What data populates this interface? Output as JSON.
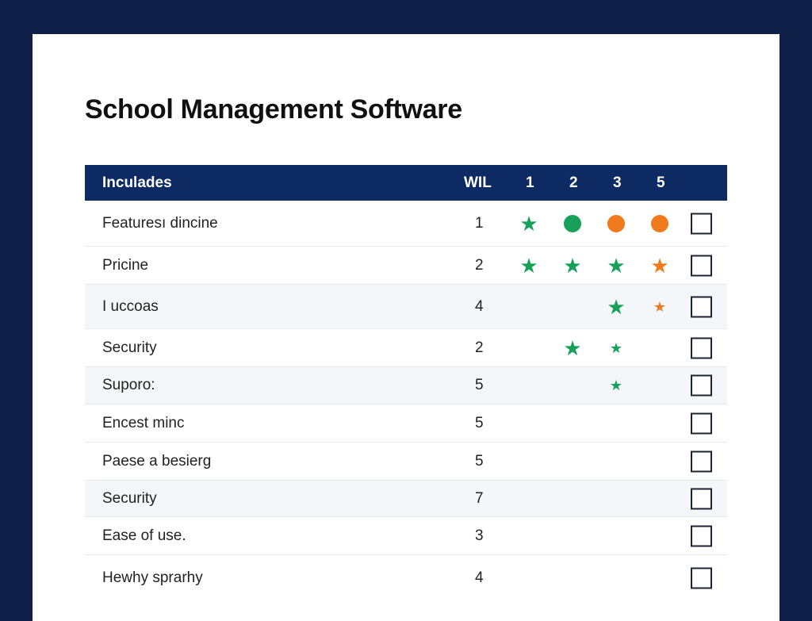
{
  "page": {
    "title": "School Management Software"
  },
  "table": {
    "headers": {
      "label": "Inculades",
      "wil": "WIL",
      "c1": "1",
      "c2": "2",
      "c3": "3",
      "c4": "5"
    },
    "rows": [
      {
        "label": "Featuresı dincine",
        "value": "1"
      },
      {
        "label": "Pricine",
        "value": "2"
      },
      {
        "label": "I uccoas",
        "value": "4"
      },
      {
        "label": "Security",
        "value": "2"
      },
      {
        "label": "Suporo:",
        "value": "5"
      },
      {
        "label": "Encest minc",
        "value": "5"
      },
      {
        "label": "Paese a besierg",
        "value": "5"
      },
      {
        "label": "Security",
        "value": "7"
      },
      {
        "label": "Ease of use.",
        "value": "3"
      },
      {
        "label": "Hewhy sprarhy",
        "value": "4"
      }
    ],
    "marks": [
      [
        "star-green",
        "dot-green",
        "dot-orange",
        "dot-orange"
      ],
      [
        "star-green",
        "star-green",
        "star-green",
        "star-orange"
      ],
      [
        "",
        "",
        "star-green",
        "star-orange-small"
      ],
      [
        "",
        "star-green",
        "star-green-small",
        ""
      ],
      [
        "",
        "",
        "star-green-small",
        ""
      ],
      [
        "",
        "",
        "",
        ""
      ],
      [
        "",
        "",
        "",
        ""
      ],
      [
        "",
        "",
        "",
        ""
      ],
      [
        "",
        "",
        "",
        ""
      ],
      [
        "",
        "",
        "",
        ""
      ]
    ],
    "checkboxes_checked": [
      false,
      false,
      false,
      false,
      false,
      false,
      false,
      false,
      false,
      false
    ]
  },
  "colors": {
    "background": "#0f1f47",
    "header": "#0e2a63",
    "green": "#16a05a",
    "orange": "#f07a1e"
  }
}
